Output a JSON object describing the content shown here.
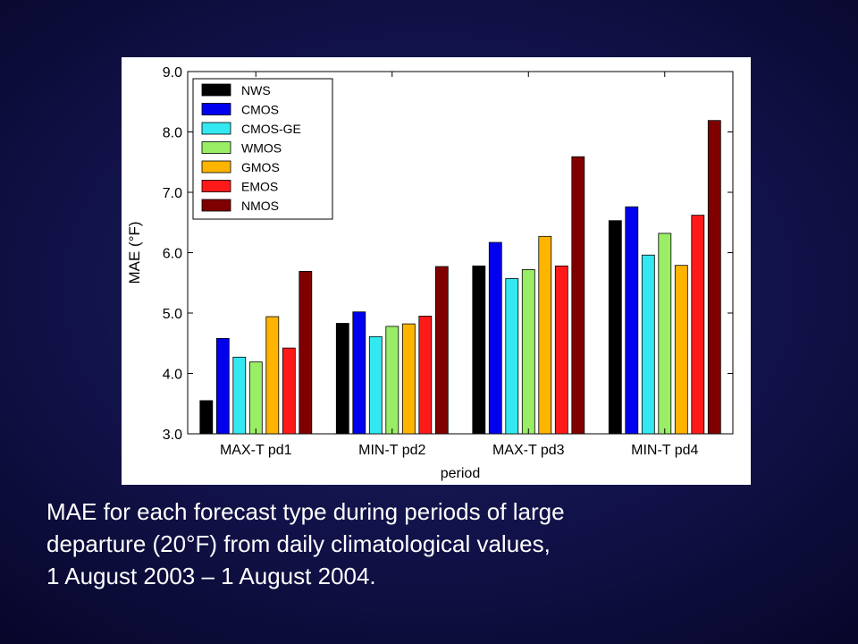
{
  "chart_data": {
    "type": "bar",
    "title": "",
    "xlabel": "period",
    "ylabel": "MAE (°F)",
    "ylim": [
      3.0,
      9.0
    ],
    "yticks": [
      "3.0",
      "4.0",
      "5.0",
      "6.0",
      "7.0",
      "8.0",
      "9.0"
    ],
    "categories": [
      "MAX-T pd1",
      "MIN-T pd2",
      "MAX-T pd3",
      "MIN-T pd4"
    ],
    "legend_position": "top-left",
    "grid": false,
    "series": [
      {
        "name": "NWS",
        "color": "#000000",
        "values": [
          3.55,
          4.83,
          5.78,
          6.53
        ]
      },
      {
        "name": "CMOS",
        "color": "#0000ee",
        "values": [
          4.58,
          5.02,
          6.17,
          6.76
        ]
      },
      {
        "name": "CMOS-GE",
        "color": "#33e8f0",
        "values": [
          4.27,
          4.61,
          5.57,
          5.96
        ]
      },
      {
        "name": "WMOS",
        "color": "#99ee66",
        "values": [
          4.19,
          4.78,
          5.72,
          6.32
        ]
      },
      {
        "name": "GMOS",
        "color": "#ffb400",
        "values": [
          4.94,
          4.82,
          6.27,
          5.79
        ]
      },
      {
        "name": "EMOS",
        "color": "#ff1a1a",
        "values": [
          4.42,
          4.95,
          5.78,
          6.62
        ]
      },
      {
        "name": "NMOS",
        "color": "#800000",
        "values": [
          5.69,
          5.77,
          7.59,
          8.19
        ]
      }
    ]
  },
  "caption": {
    "line1": "MAE for each forecast type during periods of large",
    "line2": "departure (20°F) from daily climatological values,",
    "line3": "1 August 2003 – 1 August 2004."
  }
}
